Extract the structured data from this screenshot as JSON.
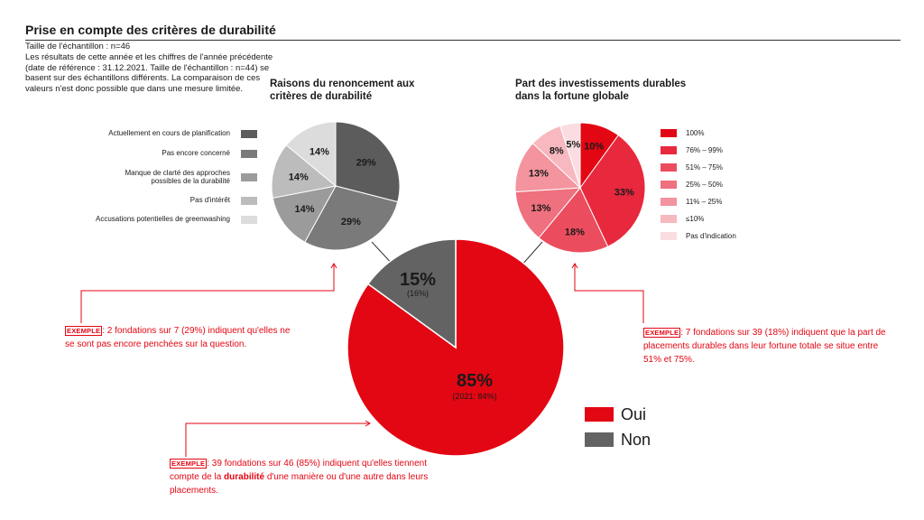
{
  "title": "Prise en compte des critères de durabilité",
  "sample_note": "Taille de l'échantillon : n=46\nLes résultats de cette année et les chiffres de l'année précédente (date de référence : 31.12.2021. Taille de l'échantillon : n=44) se basent sur des échantillons différents. La comparaison de ces valeurs n'est donc possible que dans une mesure limitée.",
  "examples": {
    "tag": "EXEMPLE",
    "left": ": 2 fondations sur 7 (29%) indiquent qu'elles ne se sont pas encore penchées sur la question.",
    "right": ": 7 fondations sur 39 (18%) indiquent que la part de placements durables dans leur fortune totale se situe entre 51% et 75%.",
    "main_before": ": 39 fondations sur 46 (85%) indiquent qu'elles tiennent compte de la ",
    "main_bold": "durabilité",
    "main_after": " d'une manière ou d'une autre dans leurs placements."
  },
  "chart_data": [
    {
      "type": "pie",
      "id": "main",
      "categories": [
        "Oui",
        "Non"
      ],
      "values": [
        85,
        15
      ],
      "labels": [
        "85%",
        "15%"
      ],
      "sublabels": [
        "(2021: 84%)",
        "(16%)"
      ],
      "colors": [
        "#e30613",
        "#636363"
      ],
      "legend_position": "right"
    },
    {
      "type": "pie",
      "id": "reasons",
      "title": "Raisons du renoncement aux critères de durabilité",
      "categories": [
        "Actuellement en cours de planification",
        "Pas encore concerné",
        "Manque de clarté des approches possibles de la durabilité",
        "Pas d'intérêt",
        "Accusations potentielles de greenwashing"
      ],
      "values": [
        29,
        29,
        14,
        14,
        14
      ],
      "labels": [
        "29%",
        "29%",
        "14%",
        "14%",
        "14%"
      ],
      "colors": [
        "#5c5c5c",
        "#7a7a7a",
        "#9b9b9b",
        "#bcbcbc",
        "#dcdcdc"
      ],
      "legend_position": "left"
    },
    {
      "type": "pie",
      "id": "share",
      "title": "Part des investissements durables dans la fortune globale",
      "categories": [
        "100%",
        "76% – 99%",
        "51% – 75%",
        "25% – 50%",
        "11% – 25%",
        "≤10%",
        "Pas d'indication"
      ],
      "values": [
        10,
        33,
        18,
        13,
        13,
        8,
        5
      ],
      "labels": [
        "10%",
        "33%",
        "18%",
        "13%",
        "13%",
        "8%",
        "5%"
      ],
      "colors": [
        "#e30613",
        "#e8283d",
        "#ec4d5e",
        "#ef707e",
        "#f3949e",
        "#f7b8c0",
        "#fbdde1"
      ],
      "legend_position": "right"
    }
  ]
}
